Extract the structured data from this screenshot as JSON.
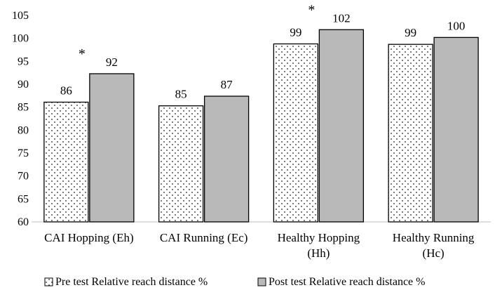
{
  "chart_data": {
    "type": "bar",
    "title": "",
    "xlabel": "",
    "ylabel": "",
    "ylim": [
      60,
      105
    ],
    "yticks": [
      60,
      65,
      70,
      75,
      80,
      85,
      90,
      95,
      100,
      105
    ],
    "categories": [
      [
        "CAI Hopping (Eh)"
      ],
      [
        "CAI Running (Ec)"
      ],
      [
        "Healthy Hopping",
        "(Hh)"
      ],
      [
        "Healthy Running",
        "(Hc)"
      ]
    ],
    "series": [
      {
        "name": "Pre test Relative reach distance %",
        "values": [
          86.1,
          85.3,
          98.8,
          98.7
        ],
        "labels": [
          "86",
          "85",
          "99",
          "99"
        ],
        "fill": "#ffffff",
        "pattern": "dots"
      },
      {
        "name": "Post test Relative reach distance %",
        "values": [
          92.3,
          87.4,
          101.9,
          100.2
        ],
        "labels": [
          "92",
          "87",
          "102",
          "100"
        ],
        "fill": "#b9b9b9",
        "pattern": "solid"
      }
    ],
    "annotations": [
      {
        "text": "*",
        "category": 0
      },
      {
        "text": "*",
        "category": 2
      }
    ],
    "legend": "bottom"
  }
}
